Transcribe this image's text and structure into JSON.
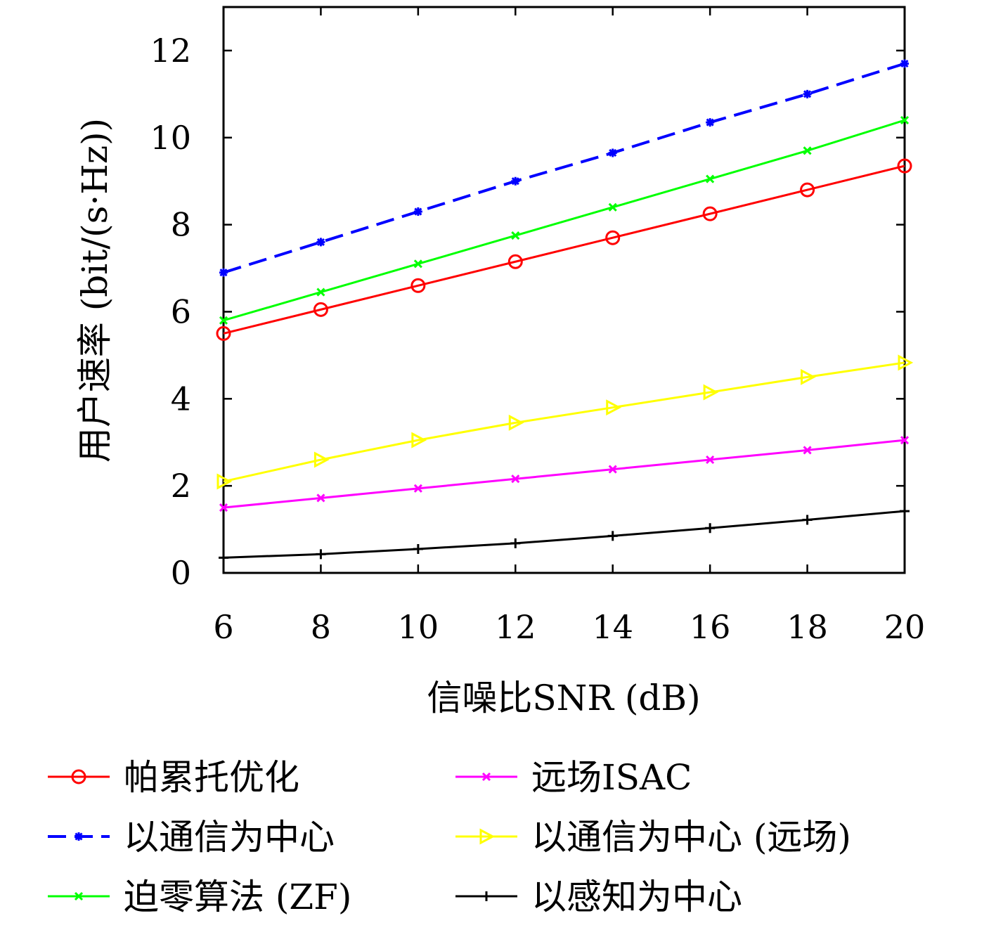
{
  "chart_data": {
    "type": "line",
    "title": "",
    "xlabel": "信噪比SNR (dB)",
    "ylabel": "用户速率 (bit/(s·Hz))",
    "x": [
      6,
      8,
      10,
      12,
      14,
      16,
      18,
      20
    ],
    "xlim": [
      6,
      20
    ],
    "ylim": [
      0,
      13
    ],
    "xticks": [
      6,
      8,
      10,
      12,
      14,
      16,
      18,
      20
    ],
    "yticks": [
      0,
      2,
      4,
      6,
      8,
      10,
      12
    ],
    "grid": false,
    "legend_position": "bottom",
    "series": [
      {
        "name": "帕累托优化",
        "color": "#ff0000",
        "marker": "circle",
        "dash": "solid",
        "values": [
          5.5,
          6.05,
          6.6,
          7.15,
          7.7,
          8.25,
          8.8,
          9.35
        ]
      },
      {
        "name": "以通信为中心",
        "color": "#0000ff",
        "marker": "asterisk",
        "dash": "dashed",
        "values": [
          6.9,
          7.6,
          8.3,
          9.0,
          9.65,
          10.35,
          11.0,
          11.7
        ]
      },
      {
        "name": "迫零算法 (ZF)",
        "color": "#00ff00",
        "marker": "x",
        "dash": "solid",
        "values": [
          5.8,
          6.45,
          7.1,
          7.75,
          8.4,
          9.05,
          9.7,
          10.4
        ]
      },
      {
        "name": "远场ISAC",
        "color": "#ff00ff",
        "marker": "x",
        "dash": "solid",
        "values": [
          1.5,
          1.72,
          1.94,
          2.16,
          2.38,
          2.6,
          2.82,
          3.05
        ]
      },
      {
        "name": "以通信为中心 (远场)",
        "color": "#ffff00",
        "marker": "triangle-right",
        "dash": "solid",
        "values": [
          2.1,
          2.6,
          3.05,
          3.45,
          3.8,
          4.15,
          4.5,
          4.83
        ]
      },
      {
        "name": "以感知为中心",
        "color": "#000000",
        "marker": "plus",
        "dash": "solid",
        "values": [
          0.35,
          0.43,
          0.55,
          0.68,
          0.85,
          1.03,
          1.22,
          1.42
        ]
      }
    ]
  }
}
